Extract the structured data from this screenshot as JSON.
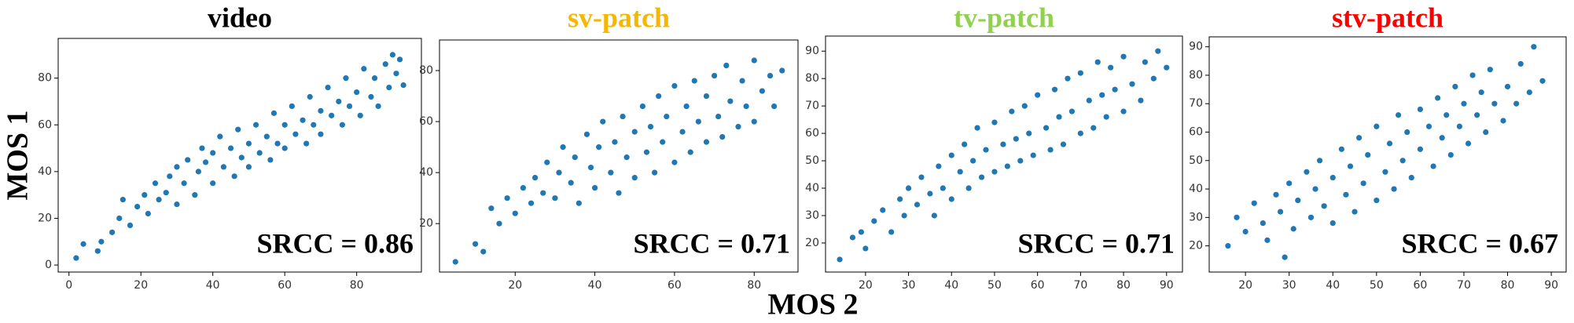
{
  "x_label": "MOS 2",
  "y_label": "MOS 1",
  "chart_data": [
    {
      "type": "scatter",
      "title": "video",
      "title_color": "#000000",
      "annotation": "SRCC = 0.86",
      "color": "#1f77b4",
      "xlim": [
        -3,
        98
      ],
      "ylim": [
        -3,
        97
      ],
      "xticks": [
        0,
        20,
        40,
        60,
        80
      ],
      "yticks": [
        0,
        20,
        40,
        60,
        80
      ],
      "x": [
        2,
        4,
        8,
        9,
        12,
        14,
        15,
        17,
        19,
        21,
        22,
        24,
        25,
        27,
        28,
        30,
        30,
        32,
        33,
        35,
        36,
        37,
        38,
        40,
        40,
        42,
        43,
        45,
        46,
        47,
        48,
        50,
        50,
        52,
        53,
        55,
        56,
        57,
        58,
        60,
        60,
        62,
        63,
        65,
        66,
        67,
        68,
        70,
        70,
        72,
        73,
        75,
        76,
        77,
        78,
        80,
        81,
        82,
        84,
        85,
        86,
        88,
        89,
        90,
        91,
        92,
        93
      ],
      "y": [
        3,
        9,
        6,
        10,
        14,
        20,
        28,
        17,
        25,
        30,
        22,
        35,
        28,
        31,
        38,
        26,
        42,
        35,
        45,
        30,
        40,
        50,
        44,
        35,
        48,
        55,
        42,
        50,
        38,
        58,
        46,
        52,
        42,
        60,
        48,
        55,
        45,
        65,
        52,
        60,
        50,
        68,
        56,
        62,
        52,
        72,
        60,
        66,
        56,
        76,
        64,
        70,
        60,
        80,
        68,
        74,
        64,
        84,
        72,
        80,
        68,
        86,
        76,
        90,
        82,
        88,
        77
      ]
    },
    {
      "type": "scatter",
      "title": "sv-patch",
      "title_color": "#f5b800",
      "annotation": "SRCC = 0.71",
      "color": "#1f77b4",
      "xlim": [
        1,
        91
      ],
      "ylim": [
        1,
        92
      ],
      "xticks": [
        20,
        40,
        60,
        80
      ],
      "yticks": [
        20,
        40,
        60,
        80
      ],
      "x": [
        5,
        10,
        12,
        14,
        16,
        18,
        20,
        22,
        24,
        25,
        27,
        28,
        30,
        31,
        32,
        34,
        35,
        36,
        38,
        39,
        40,
        41,
        42,
        44,
        45,
        46,
        47,
        48,
        50,
        50,
        52,
        53,
        54,
        55,
        56,
        57,
        58,
        60,
        60,
        62,
        63,
        64,
        65,
        66,
        68,
        68,
        70,
        71,
        72,
        73,
        74,
        76,
        77,
        78,
        80,
        80,
        82,
        84,
        85,
        87
      ],
      "y": [
        5,
        12,
        9,
        26,
        20,
        30,
        24,
        34,
        28,
        38,
        32,
        44,
        30,
        40,
        50,
        36,
        46,
        28,
        55,
        42,
        34,
        50,
        60,
        40,
        52,
        32,
        62,
        46,
        56,
        38,
        66,
        48,
        58,
        40,
        70,
        52,
        62,
        44,
        74,
        56,
        66,
        48,
        76,
        60,
        70,
        52,
        78,
        62,
        54,
        82,
        68,
        58,
        76,
        66,
        84,
        60,
        72,
        78,
        66,
        80
      ]
    },
    {
      "type": "scatter",
      "title": "tv-patch",
      "title_color": "#92d050",
      "annotation": "SRCC = 0.71",
      "color": "#1f77b4",
      "xlim": [
        10.7,
        93.7
      ],
      "ylim": [
        9.4,
        95.5
      ],
      "xticks": [
        20,
        30,
        40,
        50,
        60,
        70,
        80,
        90
      ],
      "yticks": [
        20,
        30,
        40,
        50,
        60,
        70,
        80,
        90
      ],
      "x": [
        14,
        17,
        19,
        20,
        22,
        24,
        26,
        28,
        29,
        30,
        32,
        33,
        35,
        36,
        37,
        38,
        40,
        40,
        42,
        43,
        44,
        45,
        46,
        47,
        48,
        50,
        50,
        52,
        53,
        54,
        55,
        56,
        57,
        58,
        59,
        60,
        62,
        63,
        64,
        65,
        66,
        67,
        68,
        70,
        70,
        72,
        73,
        74,
        75,
        76,
        77,
        78,
        80,
        80,
        82,
        84,
        85,
        87,
        88,
        90
      ],
      "y": [
        14,
        22,
        24,
        18,
        28,
        32,
        24,
        36,
        30,
        40,
        34,
        44,
        38,
        30,
        48,
        40,
        52,
        36,
        46,
        56,
        40,
        50,
        62,
        44,
        54,
        46,
        64,
        56,
        48,
        68,
        58,
        50,
        70,
        60,
        52,
        74,
        62,
        54,
        76,
        66,
        56,
        80,
        68,
        60,
        82,
        72,
        62,
        86,
        74,
        66,
        84,
        76,
        68,
        88,
        78,
        72,
        86,
        80,
        90,
        84
      ]
    },
    {
      "type": "scatter",
      "title": "stv-patch",
      "title_color": "#ff0000",
      "annotation": "SRCC = 0.67",
      "color": "#1f77b4",
      "xlim": [
        11.7,
        93.4
      ],
      "ylim": [
        10.8,
        93.5
      ],
      "xticks": [
        20,
        30,
        40,
        50,
        60,
        70,
        80,
        90
      ],
      "yticks": [
        20,
        30,
        40,
        50,
        60,
        70,
        80,
        90
      ],
      "x": [
        16,
        18,
        20,
        22,
        24,
        25,
        27,
        28,
        29,
        30,
        31,
        32,
        34,
        35,
        36,
        37,
        38,
        40,
        40,
        42,
        43,
        44,
        45,
        46,
        47,
        48,
        50,
        50,
        52,
        53,
        54,
        55,
        56,
        57,
        58,
        60,
        60,
        62,
        63,
        64,
        65,
        66,
        67,
        68,
        69,
        70,
        71,
        72,
        73,
        74,
        75,
        76,
        77,
        79,
        80,
        82,
        83,
        85,
        86,
        88
      ],
      "y": [
        20,
        30,
        25,
        35,
        28,
        22,
        38,
        32,
        16,
        42,
        26,
        36,
        46,
        30,
        40,
        50,
        34,
        44,
        28,
        54,
        38,
        48,
        32,
        58,
        42,
        52,
        36,
        62,
        46,
        56,
        40,
        66,
        50,
        60,
        44,
        68,
        54,
        62,
        48,
        72,
        58,
        66,
        52,
        76,
        62,
        70,
        56,
        80,
        66,
        74,
        60,
        82,
        70,
        64,
        76,
        70,
        84,
        74,
        90,
        78
      ]
    }
  ]
}
